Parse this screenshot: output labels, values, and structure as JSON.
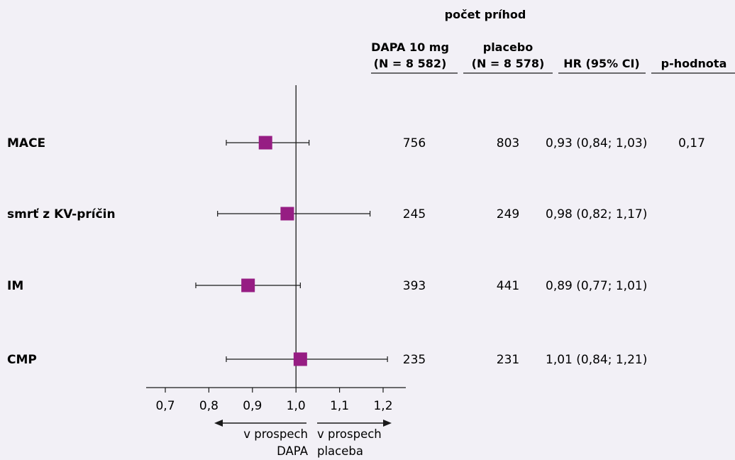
{
  "chart_data": {
    "type": "forest",
    "header_group": "počet príhod",
    "columns": {
      "dapa_line1": "DAPA 10 mg",
      "dapa_line2": "(N = 8 582)",
      "placebo_line1": "placebo",
      "placebo_line2": "(N = 8 578)",
      "hr": "HR (95% CI)",
      "p": "p-hodnota"
    },
    "rows": [
      {
        "label": "MACE",
        "dapa": "756",
        "placebo": "803",
        "hr_text": "0,93 (0,84; 1,03)",
        "p": "0,17",
        "hr": 0.93,
        "lo": 0.84,
        "hi": 1.03
      },
      {
        "label": "smrť z KV-príčin",
        "dapa": "245",
        "placebo": "249",
        "hr_text": "0,98 (0,82; 1,17)",
        "p": "",
        "hr": 0.98,
        "lo": 0.82,
        "hi": 1.17
      },
      {
        "label": "IM",
        "dapa": "393",
        "placebo": "441",
        "hr_text": "0,89 (0,77; 1,01)",
        "p": "",
        "hr": 0.89,
        "lo": 0.77,
        "hi": 1.01
      },
      {
        "label": "CMP",
        "dapa": "235",
        "placebo": "231",
        "hr_text": "1,01 (0,84; 1,21)",
        "p": "",
        "hr": 1.01,
        "lo": 0.84,
        "hi": 1.21
      }
    ],
    "xlim": [
      0.7,
      1.2
    ],
    "xticks": [
      0.7,
      0.8,
      0.9,
      1.0,
      1.1,
      1.2
    ],
    "xtick_labels": [
      "0,7",
      "0,8",
      "0,9",
      "1,0",
      "1,1",
      "1,2"
    ],
    "reference_line": 1.0,
    "favor_left": [
      "v prospech",
      "DAPA"
    ],
    "favor_right": [
      "v prospech",
      "placeba"
    ],
    "marker_color": "#961d83",
    "line_color": "#1a1a1a",
    "background": "#f2f0f6"
  }
}
